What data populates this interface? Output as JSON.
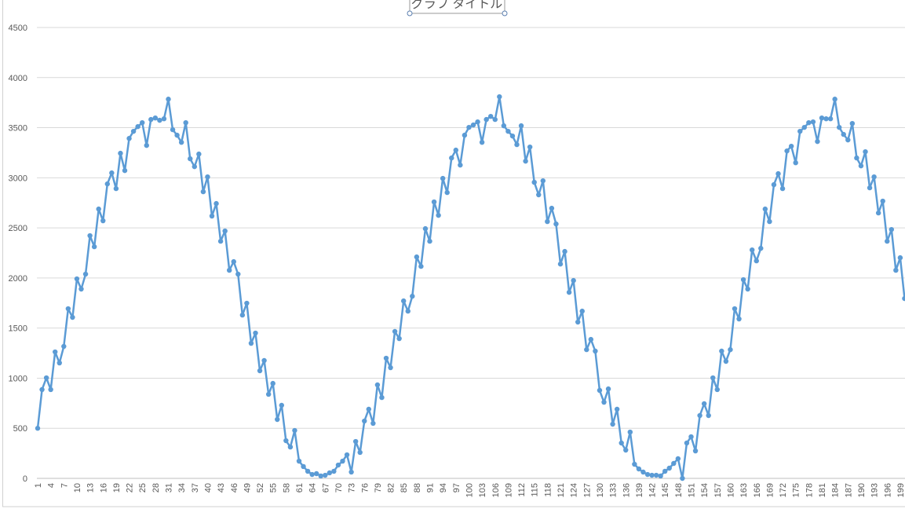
{
  "chart_data": {
    "type": "line",
    "title": "グラフ タイトル",
    "categories": [
      1,
      null,
      null,
      4,
      null,
      null,
      7,
      null,
      null,
      10,
      null,
      null,
      13,
      null,
      null,
      16,
      null,
      null,
      19,
      null,
      null,
      22,
      null,
      null,
      25,
      null,
      null,
      28,
      null,
      null,
      31,
      null,
      null,
      34,
      null,
      null,
      37,
      null,
      null,
      40,
      null,
      null,
      43,
      null,
      null,
      46,
      null,
      null,
      49,
      null,
      null,
      52,
      null,
      null,
      55,
      null,
      null,
      58,
      null,
      null,
      61,
      null,
      null,
      64,
      null,
      null,
      67,
      null,
      null,
      70,
      null,
      null,
      73,
      null,
      null,
      76,
      null,
      null,
      79,
      null,
      null,
      82,
      null,
      null,
      85,
      null,
      null,
      88,
      null,
      null,
      91,
      null,
      null,
      94,
      null,
      null,
      97,
      null,
      null,
      100,
      null,
      null,
      103,
      null,
      null,
      106,
      null,
      null,
      109,
      null,
      null,
      112,
      null,
      null,
      115,
      null,
      null,
      118,
      null,
      null,
      121,
      null,
      null,
      124,
      null,
      null,
      127,
      null,
      null,
      130,
      null,
      null,
      133,
      null,
      null,
      136,
      null,
      null,
      139,
      null,
      null,
      142,
      null,
      null,
      145,
      null,
      null,
      148,
      null,
      null,
      151,
      null,
      null,
      154,
      null,
      null,
      157,
      null,
      null,
      160,
      null,
      null,
      163,
      null,
      null,
      166,
      null,
      null,
      169,
      null,
      null,
      172,
      null,
      null,
      175,
      null,
      null,
      178,
      null,
      null,
      181,
      null,
      null,
      184,
      null,
      null,
      187,
      null,
      null,
      190,
      null,
      null,
      193,
      null,
      null,
      196,
      null,
      null,
      199,
      null
    ],
    "values": [
      500,
      886,
      1003,
      886,
      1262,
      1152,
      1317,
      1693,
      1607,
      1991,
      1889,
      2038,
      2422,
      2312,
      2688,
      2571,
      2939,
      3049,
      2892,
      3245,
      3072,
      3393,
      3464,
      3511,
      3550,
      3323,
      3582,
      3597,
      3574,
      3589,
      3785,
      3480,
      3425,
      3354,
      3550,
      3190,
      3111,
      3237,
      2861,
      3009,
      2618,
      2743,
      2367,
      2469,
      2077,
      2163,
      2038,
      1630,
      1748,
      1348,
      1450,
      1074,
      1176,
      839,
      948,
      588,
      729,
      376,
      313,
      478,
      172,
      118,
      71,
      39,
      47,
      24,
      31,
      55,
      71,
      133,
      172,
      235,
      63,
      368,
      259,
      572,
      690,
      549,
      933,
      807,
      1199,
      1105,
      1466,
      1395,
      1771,
      1669,
      1818,
      2210,
      2116,
      2492,
      2367,
      2759,
      2625,
      2994,
      2853,
      3198,
      3276,
      3127,
      3425,
      3503,
      3527,
      3558,
      3354,
      3582,
      3613,
      3582,
      3809,
      3519,
      3464,
      3417,
      3331,
      3519,
      3166,
      3307,
      2955,
      2830,
      2970,
      2563,
      2696,
      2539,
      2139,
      2265,
      1857,
      1975,
      1560,
      1669,
      1285,
      1387,
      1270,
      878,
      760,
      893,
      541,
      690,
      353,
      282,
      462,
      141,
      94,
      63,
      39,
      31,
      31,
      24,
      71,
      102,
      149,
      196,
      0,
      353,
      415,
      274,
      627,
      745,
      627,
      1003,
      886,
      1270,
      1168,
      1285,
      1693,
      1591,
      1983,
      1889,
      2280,
      2171,
      2296,
      2688,
      2563,
      2931,
      3041,
      2892,
      3268,
      3315,
      3150,
      3464,
      3503,
      3550,
      3558,
      3362,
      3597,
      3589,
      3589,
      3785,
      3503,
      3433,
      3378,
      3542,
      3198,
      3119,
      3260,
      2900,
      3009,
      2649,
      2767,
      2367,
      2484,
      2077,
      2202,
      1795
    ],
    "color": "#5b9bd5",
    "ylim": [
      0,
      4500
    ],
    "yticks": [
      0,
      500,
      1000,
      1500,
      2000,
      2500,
      3000,
      3500,
      4000,
      4500
    ],
    "grid": true
  }
}
